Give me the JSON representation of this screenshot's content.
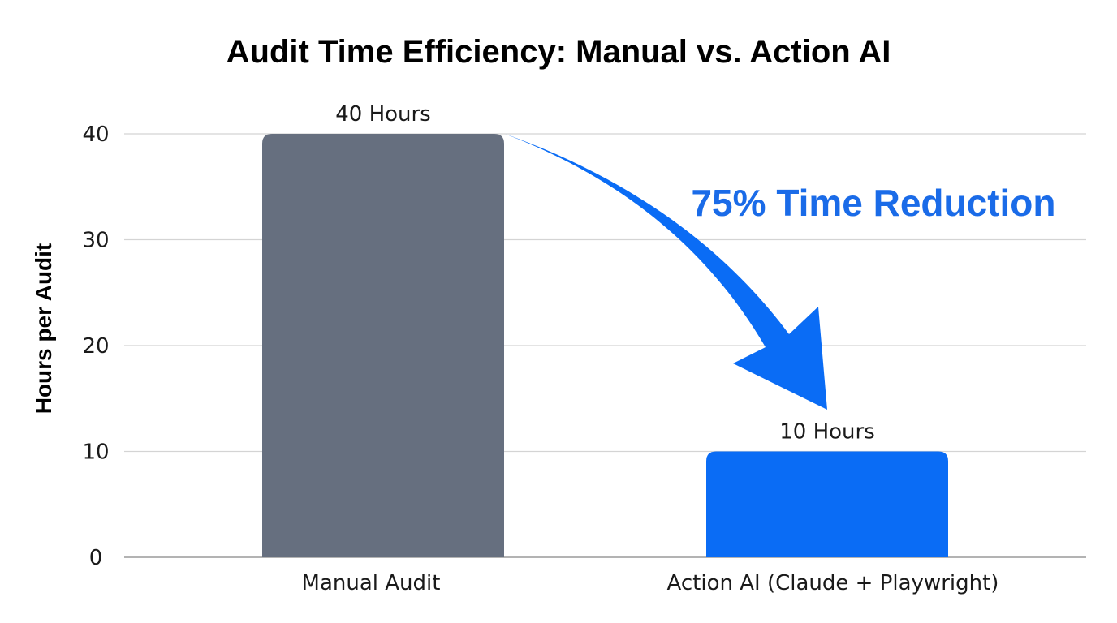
{
  "chart_data": {
    "type": "bar",
    "title": "Audit Time Efficiency: Manual vs. Action AI",
    "xlabel": "",
    "ylabel": "Hours per Audit",
    "categories": [
      "Manual Audit",
      "Action AI (Claude + Playwright)"
    ],
    "values": [
      40,
      10
    ],
    "data_labels": [
      "40 Hours",
      "10 Hours"
    ],
    "bar_colors": [
      "#666f7f",
      "#0a6cf5"
    ],
    "ylim": [
      0,
      40
    ],
    "yticks": [
      "0",
      "10",
      "20",
      "30",
      "40"
    ],
    "grid": true,
    "annotation": {
      "text": "75% Time Reduction",
      "color": "#1a6be8",
      "arrow": "curved arrow from top of Manual Audit bar down to Action AI bar",
      "arrow_color": "#0a6cf5"
    }
  }
}
